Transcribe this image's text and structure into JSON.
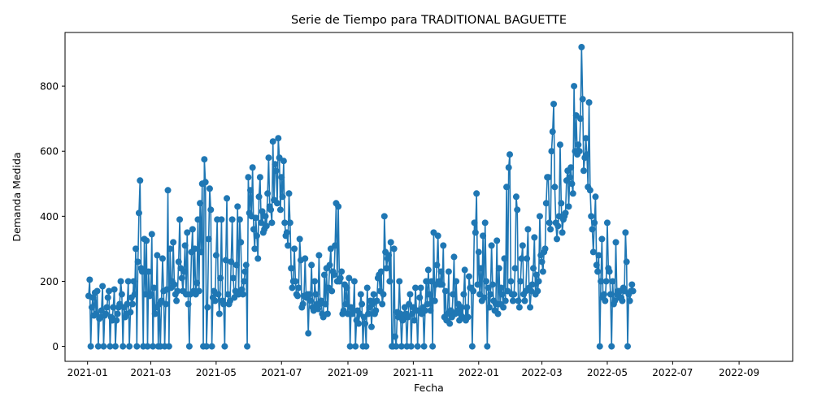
{
  "chart_data": {
    "type": "line",
    "title": "Serie de Tiempo para TRADITIONAL BAGUETTE",
    "xlabel": "Fecha",
    "ylabel": "Demanda Medida",
    "x_start": "2021-01-02",
    "x_end": "2022-09-30",
    "xlim": [
      "2020-12-11",
      "2022-10-21"
    ],
    "ylim": [
      -46,
      965
    ],
    "x_ticks": [
      "2021-01",
      "2021-03",
      "2021-05",
      "2021-07",
      "2021-09",
      "2021-11",
      "2022-01",
      "2022-03",
      "2022-05",
      "2022-07",
      "2022-09"
    ],
    "y_ticks": [
      0,
      200,
      400,
      600,
      800
    ],
    "grid": false,
    "line_color": "#1f77b4",
    "marker": "circle",
    "series": [
      {
        "values": [
          155,
          205,
          0,
          120,
          150,
          95,
          165,
          100,
          170,
          0,
          85,
          90,
          110,
          185,
          0,
          95,
          100,
          120,
          150,
          170,
          0,
          90,
          80,
          120,
          175,
          0,
          80,
          100,
          120,
          130,
          200,
          160,
          0,
          120,
          90,
          100,
          130,
          200,
          0,
          105,
          150,
          130,
          200,
          160,
          300,
          0,
          260,
          410,
          510,
          240,
          230,
          0,
          330,
          160,
          325,
          0,
          230,
          155,
          160,
          345,
          0,
          180,
          100,
          120,
          280,
          0,
          130,
          0,
          140,
          270,
          170,
          0,
          130,
          175,
          480,
          0,
          300,
          180,
          200,
          320,
          190,
          160,
          140,
          170,
          260,
          390,
          240,
          210,
          170,
          230,
          310,
          160,
          350,
          130,
          0,
          160,
          290,
          360,
          170,
          300,
          160,
          195,
          390,
          170,
          440,
          290,
          500,
          0,
          575,
          505,
          0,
          120,
          330,
          485,
          420,
          0,
          150,
          170,
          140,
          280,
          390,
          160,
          100,
          210,
          390,
          140,
          130,
          0,
          265,
          455,
          160,
          130,
          140,
          260,
          390,
          210,
          150,
          170,
          250,
          430,
          160,
          390,
          320,
          175,
          160,
          200,
          230,
          250,
          0,
          520,
          410,
          480,
          400,
          550,
          360,
          300,
          395,
          340,
          270,
          460,
          520,
          380,
          415,
          350,
          360,
          400,
          370,
          470,
          580,
          430,
          420,
          380,
          630,
          450,
          560,
          540,
          440,
          640,
          580,
          420,
          520,
          460,
          570,
          380,
          340,
          350,
          310,
          470,
          380,
          240,
          180,
          200,
          300,
          200,
          160,
          155,
          180,
          330,
          265,
          120,
          130,
          155,
          270,
          150,
          160,
          40,
          160,
          140,
          250,
          120,
          110,
          200,
          160,
          130,
          115,
          280,
          130,
          140,
          100,
          90,
          220,
          130,
          240,
          100,
          180,
          250,
          300,
          170,
          230,
          220,
          310,
          440,
          200,
          430,
          200,
          210,
          230,
          100,
          110,
          190,
          130,
          180,
          100,
          210,
          0,
          120,
          100,
          110,
          200,
          0,
          80,
          110,
          70,
          100,
          160,
          130,
          0,
          90,
          70,
          0,
          180,
          100,
          120,
          140,
          60,
          130,
          160,
          100,
          110,
          140,
          210,
          220,
          170,
          230,
          130,
          160,
          400,
          290,
          240,
          270,
          280,
          200,
          320,
          0,
          0,
          300,
          30,
          0,
          105,
          90,
          200,
          100,
          0,
          80,
          90,
          120,
          100,
          0,
          90,
          130,
          160,
          0,
          100,
          120,
          80,
          180,
          110,
          0,
          110,
          150,
          180,
          100,
          120,
          0,
          110,
          200,
          130,
          235,
          160,
          110,
          200,
          0,
          350,
          140,
          190,
          250,
          340,
          200,
          190,
          230,
          190,
          310,
          90,
          170,
          80,
          100,
          230,
          70,
          110,
          90,
          160,
          275,
          100,
          200,
          110,
          130,
          80,
          100,
          120,
          90,
          160,
          235,
          80,
          120,
          90,
          215,
          180,
          180,
          0,
          170,
          380,
          350,
          470,
          190,
          290,
          160,
          240,
          140,
          340,
          150,
          380,
          200,
          0,
          180,
          120,
          160,
          310,
          190,
          140,
          110,
          130,
          325,
          100,
          240,
          130,
          180,
          160,
          120,
          270,
          140,
          490,
          170,
          550,
          590,
          200,
          160,
          140,
          160,
          240,
          460,
          420,
          140,
          120,
          200,
          270,
          310,
          160,
          140,
          170,
          270,
          360,
          180,
          120,
          170,
          190,
          240,
          335,
          160,
          220,
          170,
          200,
          400,
          280,
          260,
          230,
          290,
          300,
          440,
          520,
          520,
          380,
          360,
          600,
          660,
          745,
          490,
          380,
          330,
          370,
          400,
          620,
          440,
          350,
          390,
          400,
          410,
          510,
          540,
          430,
          520,
          550,
          500,
          470,
          800,
          600,
          710,
          590,
          620,
          600,
          700,
          920,
          760,
          540,
          580,
          640,
          590,
          490,
          750,
          480,
          400,
          360,
          290,
          380,
          460,
          250,
          230,
          280,
          0,
          200,
          330,
          150,
          160,
          140,
          200,
          380,
          240,
          230,
          160,
          0,
          200,
          130,
          140,
          320,
          160,
          170,
          150,
          170,
          150,
          140,
          180,
          170,
          350,
          260,
          0,
          160,
          140,
          170,
          190,
          170
        ]
      }
    ]
  }
}
